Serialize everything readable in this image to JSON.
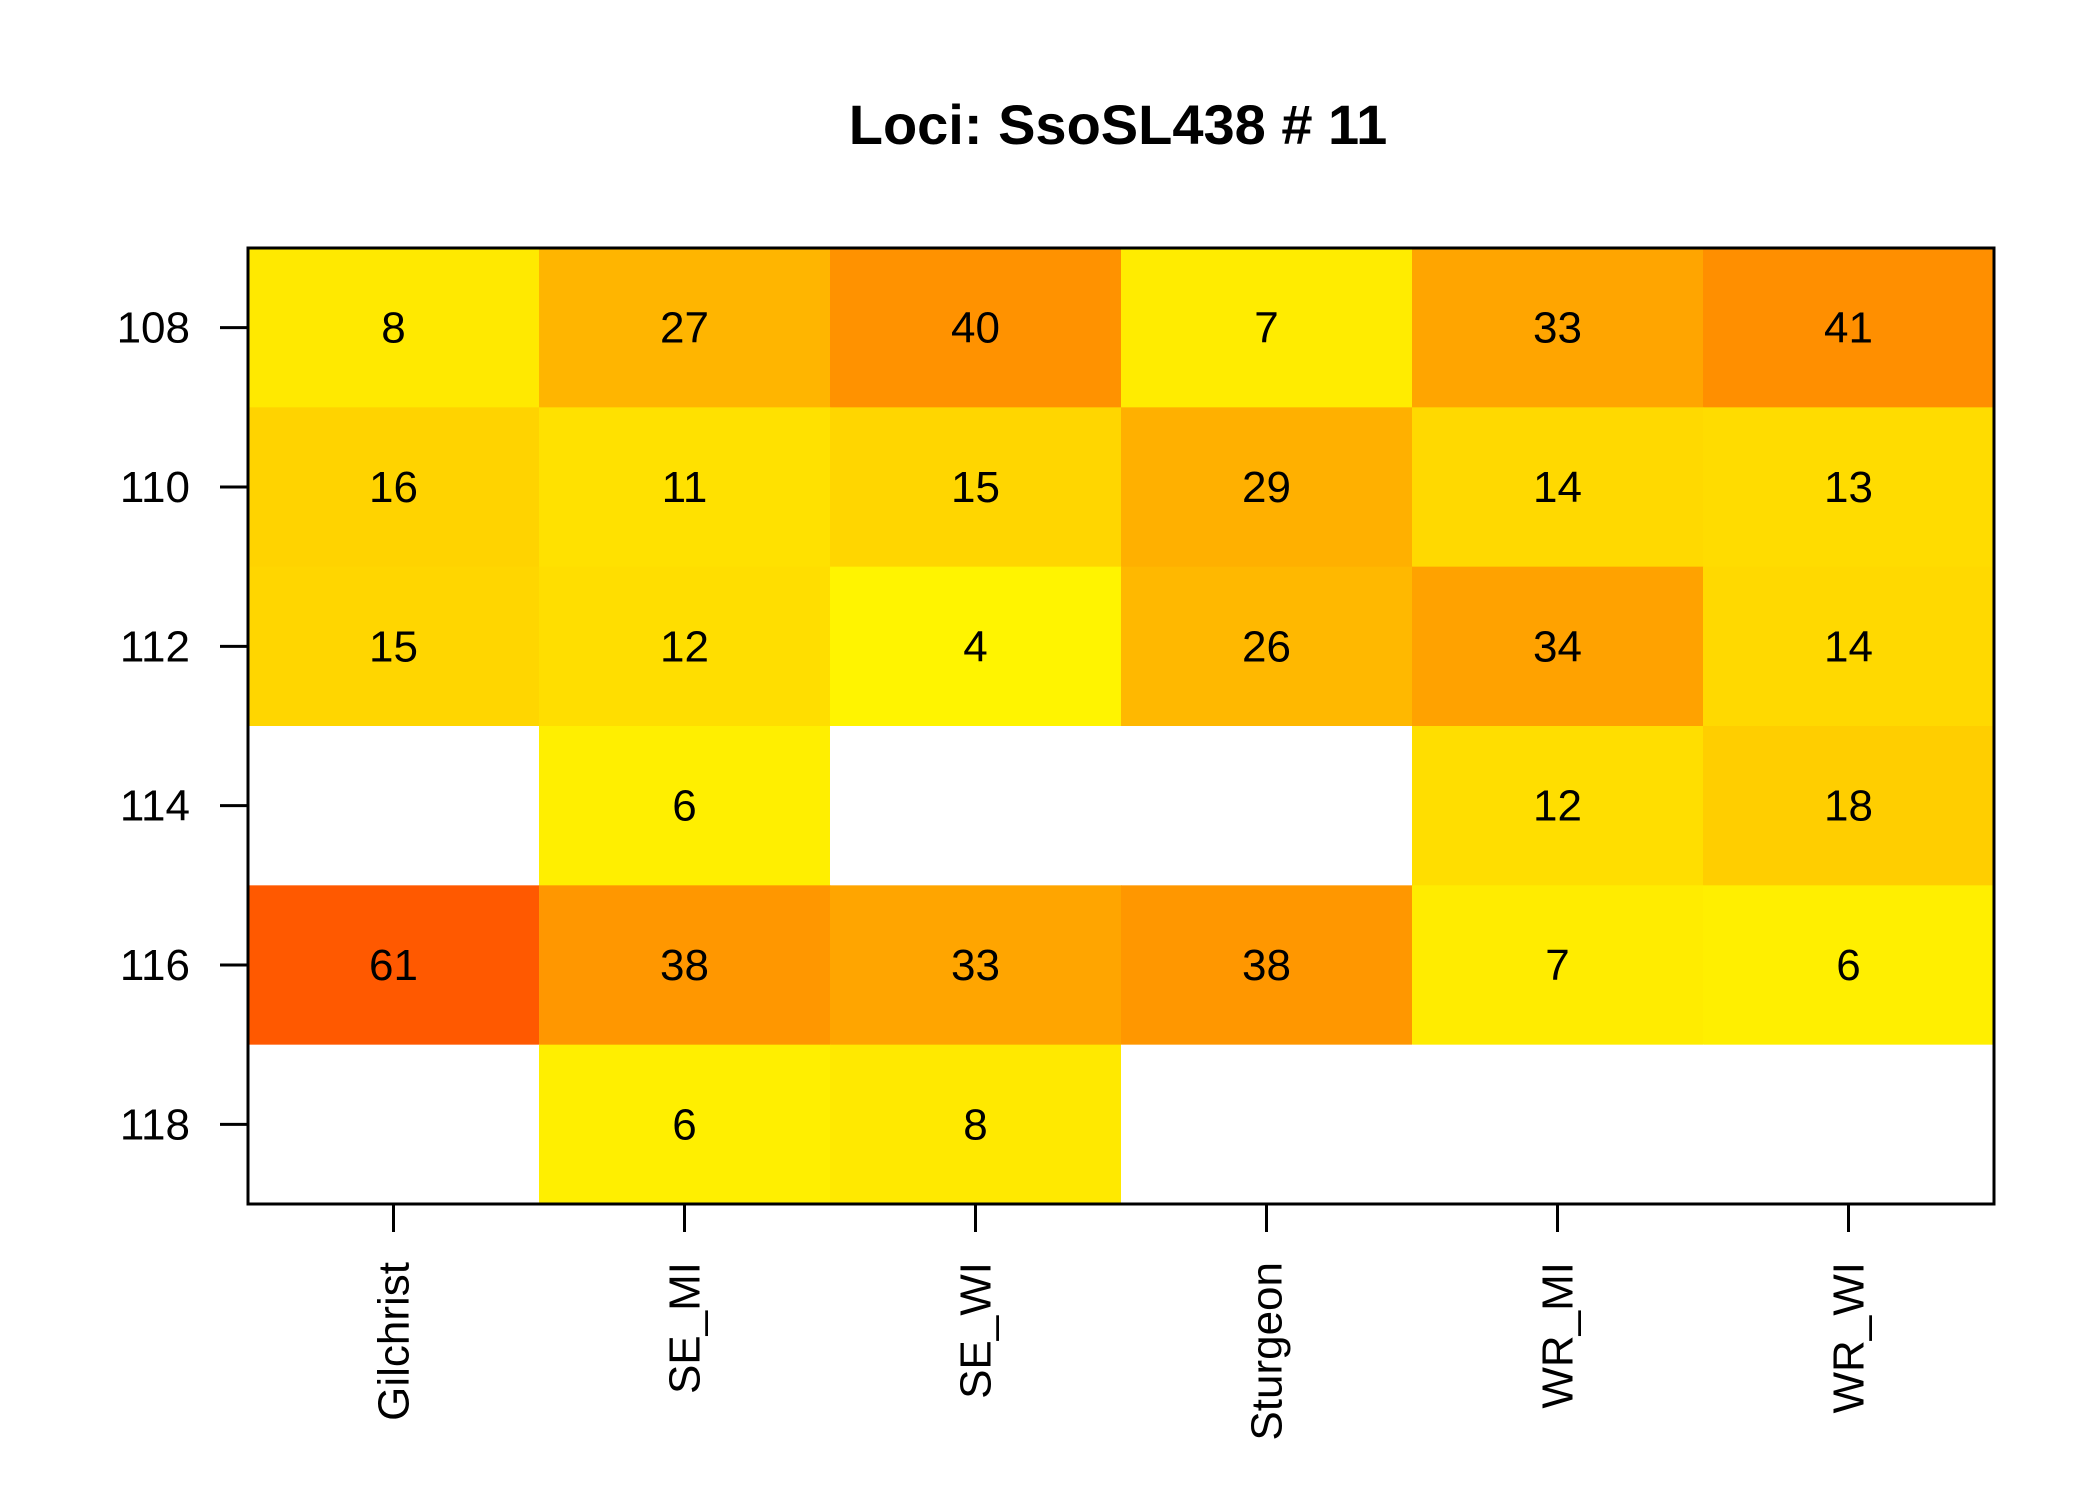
{
  "chart_data": {
    "type": "heatmap",
    "title": "Loci: SsoSL438 # 11",
    "xlabel": "",
    "ylabel": "",
    "columns": [
      "Gilchrist",
      "SE_MI",
      "SE_WI",
      "Sturgeon",
      "WR_MI",
      "WR_WI"
    ],
    "rows": [
      "108",
      "110",
      "112",
      "114",
      "116",
      "118"
    ],
    "values": [
      [
        8,
        27,
        40,
        7,
        33,
        41
      ],
      [
        16,
        11,
        15,
        29,
        14,
        13
      ],
      [
        15,
        12,
        4,
        26,
        34,
        14
      ],
      [
        null,
        6,
        null,
        null,
        12,
        18
      ],
      [
        61,
        38,
        33,
        38,
        7,
        6
      ],
      [
        null,
        6,
        8,
        null,
        null,
        null
      ]
    ],
    "color_scale": {
      "low": "#ffff00",
      "high": "#ff4000",
      "missing": "#ffffff",
      "min": 0,
      "max": 70
    },
    "grid": false,
    "legend": "none"
  }
}
